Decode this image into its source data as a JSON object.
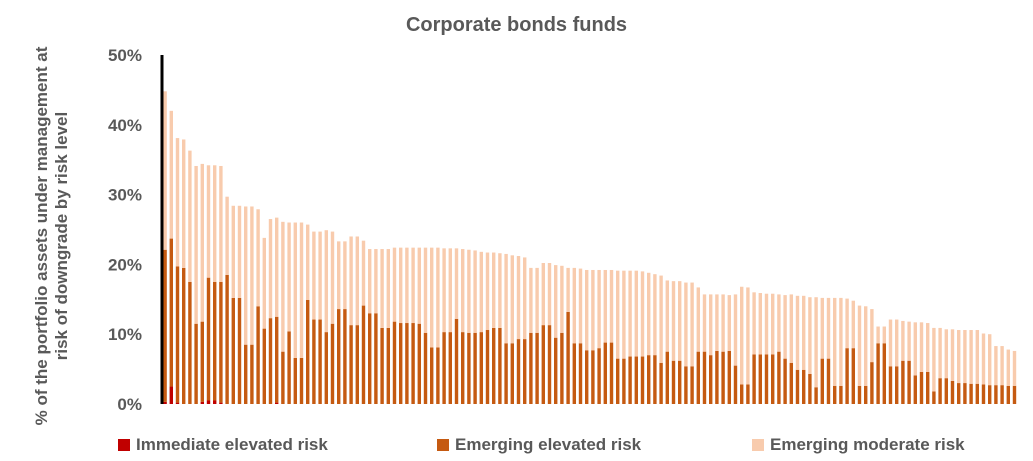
{
  "chart_data": {
    "type": "bar",
    "stacked": true,
    "title": "Corporate bonds funds",
    "xlabel": "",
    "ylabel": "% of the portfolio assets under management at risk of downgrade by risk level",
    "ylim": [
      0,
      50
    ],
    "yticks": [
      "0%",
      "10%",
      "20%",
      "30%",
      "40%",
      "50%"
    ],
    "grid": false,
    "legend_position": "bottom",
    "series": [
      {
        "name": "Immediate elevated risk",
        "color": "#c00000",
        "values": [
          0.3,
          2.5,
          0.2,
          0,
          0,
          0,
          0.3,
          0.5,
          0.5,
          0.2,
          0,
          0,
          0,
          0,
          0,
          0,
          0,
          0,
          0.2,
          0,
          0,
          0,
          0,
          0,
          0,
          0,
          0,
          0,
          0,
          0,
          0,
          0,
          0,
          0,
          0,
          0,
          0,
          0,
          0,
          0,
          0,
          0,
          0,
          0,
          0,
          0,
          0,
          0,
          0,
          0,
          0,
          0,
          0,
          0,
          0,
          0,
          0,
          0,
          0,
          0,
          0,
          0,
          0,
          0,
          0,
          0,
          0,
          0,
          0,
          0,
          0,
          0,
          0,
          0,
          0,
          0,
          0,
          0,
          0,
          0,
          0,
          0,
          0,
          0,
          0,
          0,
          0,
          0,
          0,
          0,
          0,
          0,
          0,
          0,
          0,
          0,
          0,
          0,
          0,
          0,
          0,
          0,
          0,
          0,
          0,
          0,
          0,
          0,
          0,
          0,
          0,
          0,
          0,
          0,
          0,
          0,
          0,
          0,
          0,
          0,
          0,
          0,
          0,
          0,
          0,
          0,
          0,
          0,
          0,
          0,
          0,
          0,
          0,
          0,
          0,
          0,
          0,
          0,
          0,
          0
        ]
      },
      {
        "name": "Emerging elevated risk",
        "color": "#c55a11",
        "values": [
          21.8,
          21.2,
          19.5,
          19.5,
          17.5,
          11.5,
          11.5,
          17.6,
          17.0,
          17.3,
          18.5,
          15.2,
          15.2,
          8.5,
          8.5,
          14.0,
          10.8,
          12.3,
          12.3,
          7.5,
          10.4,
          6.6,
          6.6,
          14.9,
          12.1,
          12.1,
          10.3,
          11.5,
          13.6,
          13.6,
          11.3,
          11.3,
          14.1,
          13.0,
          13.0,
          10.9,
          10.9,
          11.8,
          11.6,
          11.6,
          11.6,
          11.5,
          10.2,
          8.1,
          8.1,
          10.3,
          10.3,
          12.2,
          10.3,
          10.2,
          10.2,
          10.3,
          10.6,
          10.9,
          10.9,
          8.7,
          8.7,
          9.3,
          9.3,
          10.2,
          10.2,
          11.3,
          11.3,
          9.5,
          10.2,
          13.2,
          8.7,
          8.7,
          7.7,
          7.7,
          8.0,
          8.8,
          8.8,
          6.5,
          6.5,
          6.8,
          6.8,
          6.8,
          7.0,
          7.0,
          5.9,
          7.5,
          6.2,
          6.2,
          5.4,
          5.4,
          7.5,
          7.5,
          7.0,
          7.6,
          7.5,
          7.6,
          5.5,
          2.8,
          2.8,
          7.1,
          7.1,
          7.1,
          7.1,
          7.5,
          6.5,
          5.9,
          4.9,
          4.9,
          4.3,
          2.4,
          6.5,
          6.5,
          2.6,
          2.6,
          8.0,
          8.0,
          2.6,
          2.6,
          6.0,
          8.7,
          8.7,
          5.4,
          5.4,
          6.2,
          6.2,
          4.1,
          4.6,
          4.6,
          1.8,
          3.7,
          3.7,
          3.3,
          3.0,
          3.0,
          2.9,
          2.9,
          2.8,
          2.7,
          2.7,
          2.7,
          2.6,
          2.6
        ]
      },
      {
        "name": "Emerging moderate risk",
        "color": "#f8cbad",
        "values": [
          22.7,
          18.3,
          18.4,
          18.4,
          18.8,
          22.6,
          22.6,
          16.1,
          16.7,
          16.6,
          11.2,
          13.2,
          13.2,
          19.8,
          19.8,
          13.9,
          13.0,
          14.2,
          14.2,
          18.6,
          15.6,
          19.4,
          19.4,
          10.8,
          12.6,
          12.6,
          14.6,
          13.2,
          9.7,
          9.7,
          12.7,
          12.7,
          9.3,
          9.2,
          9.2,
          11.3,
          11.3,
          10.6,
          10.8,
          10.8,
          10.8,
          10.9,
          12.2,
          14.3,
          14.3,
          12.0,
          12.0,
          10.1,
          11.9,
          11.9,
          11.8,
          11.5,
          11.1,
          10.8,
          10.7,
          12.8,
          12.6,
          11.9,
          11.7,
          9.3,
          9.3,
          8.9,
          8.9,
          10.4,
          9.6,
          6.3,
          10.8,
          10.7,
          11.5,
          11.5,
          11.2,
          10.4,
          10.4,
          12.6,
          12.6,
          12.3,
          12.3,
          12.2,
          11.8,
          11.6,
          12.5,
          10.2,
          11.4,
          11.4,
          12.0,
          12.0,
          9.2,
          8.2,
          8.7,
          8.1,
          8.2,
          8.0,
          10.2,
          14.0,
          13.9,
          8.9,
          8.8,
          8.7,
          8.7,
          8.2,
          9.1,
          9.8,
          10.6,
          10.6,
          11.0,
          12.9,
          8.7,
          8.7,
          12.6,
          12.6,
          7.1,
          6.8,
          11.5,
          11.4,
          7.6,
          2.4,
          2.4,
          6.7,
          6.7,
          5.7,
          5.6,
          7.6,
          7.1,
          7.0,
          9.1,
          7.2,
          7.0,
          7.4,
          7.6,
          7.6,
          7.7,
          7.7,
          7.3,
          7.3,
          5.6,
          5.6,
          5.2,
          5.0
        ]
      }
    ]
  }
}
